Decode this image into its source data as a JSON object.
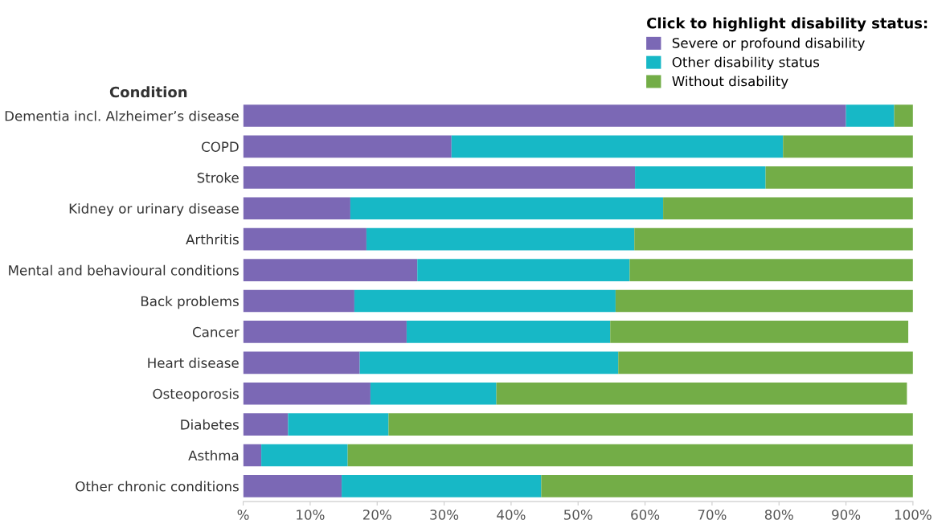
{
  "chart_data": {
    "type": "bar",
    "orientation": "horizontal",
    "stacked": true,
    "ylabel": "Condition",
    "legend_title": "Click to highlight disability status:",
    "legend": "top right",
    "grid": false,
    "categories": [
      "Dementia incl. Alzheimer’s disease",
      "COPD",
      "Stroke",
      "Kidney or urinary disease",
      "Arthritis",
      "Mental and behavioural conditions",
      "Back problems",
      "Cancer",
      "Heart disease",
      "Osteoporosis",
      "Diabetes",
      "Asthma",
      "Other chronic conditions"
    ],
    "series": [
      {
        "name": "Severe or profound disability",
        "color": "#7b68b5",
        "values": [
          90.0,
          31.1,
          58.5,
          16.0,
          18.4,
          26.0,
          16.6,
          24.4,
          17.4,
          19.0,
          6.7,
          2.7,
          14.7
        ]
      },
      {
        "name": "Other disability status",
        "color": "#17b8c6",
        "values": [
          7.2,
          49.5,
          19.5,
          46.7,
          40.0,
          31.7,
          39.0,
          30.4,
          38.6,
          18.8,
          15.0,
          12.9,
          29.8
        ]
      },
      {
        "name": "Without disability",
        "color": "#73ad47",
        "values": [
          2.8,
          19.4,
          22.0,
          37.3,
          41.6,
          42.3,
          44.4,
          44.5,
          44.0,
          61.3,
          78.3,
          84.4,
          55.5
        ]
      }
    ],
    "xlim": [
      0,
      100
    ],
    "xticks": [
      {
        "value": 0,
        "label": "%"
      },
      {
        "value": 10,
        "label": "10%"
      },
      {
        "value": 20,
        "label": "20%"
      },
      {
        "value": 30,
        "label": "30%"
      },
      {
        "value": 40,
        "label": "40%"
      },
      {
        "value": 50,
        "label": "50%"
      },
      {
        "value": 60,
        "label": "60%"
      },
      {
        "value": 70,
        "label": "70%"
      },
      {
        "value": 80,
        "label": "80%"
      },
      {
        "value": 90,
        "label": "90%"
      },
      {
        "value": 100,
        "label": "100%"
      }
    ]
  }
}
